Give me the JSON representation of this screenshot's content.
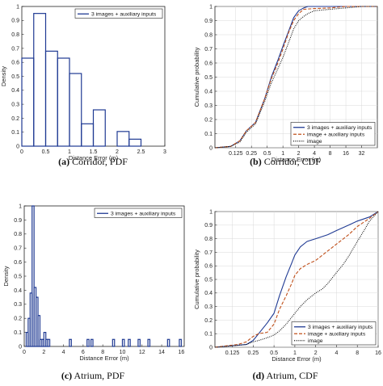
{
  "chart_data": [
    {
      "id": "a",
      "type": "bar",
      "caption_label": "(a)",
      "caption_text": "Corridor, PDF",
      "xlabel": "Distance Error (m)",
      "ylabel": "Density",
      "xlim": [
        0,
        3
      ],
      "ylim": [
        0,
        1
      ],
      "xticks": [
        0,
        0.5,
        1,
        1.5,
        2,
        2.5,
        3
      ],
      "xtick_labels": [
        "0",
        "0.5",
        "1",
        "1.5",
        "2",
        "2.5",
        "3"
      ],
      "yticks": [
        0,
        0.1,
        0.2,
        0.3,
        0.4,
        0.5,
        0.6,
        0.7,
        0.8,
        0.9,
        1
      ],
      "ytick_labels": [
        "0",
        "0.1",
        "0.2",
        "0.3",
        "0.4",
        "0.5",
        "0.6",
        "0.7",
        "0.8",
        "0.9",
        "1"
      ],
      "legend_position": "top-right",
      "color": "#1f3a93",
      "series": [
        {
          "name": "3 images + auxiliary inputs",
          "bin_edges": [
            0,
            0.25,
            0.5,
            0.75,
            1,
            1.25,
            1.5,
            1.75,
            2,
            2.25,
            2.5
          ],
          "values": [
            0.63,
            0.95,
            0.68,
            0.63,
            0.52,
            0.16,
            0.26,
            0.0,
            0.105,
            0.05
          ]
        }
      ]
    },
    {
      "id": "b",
      "type": "line",
      "caption_label": "(b)",
      "caption_text": "Corridor, CDF",
      "xlabel": "Distance Error (m)",
      "ylabel": "Cumulative probability",
      "xscale": "log2",
      "xlim": [
        0.05,
        64
      ],
      "ylim": [
        0,
        1
      ],
      "xticks": [
        0.125,
        0.25,
        0.5,
        1,
        2,
        4,
        8,
        16,
        32
      ],
      "xtick_labels": [
        "0.125",
        "0.25",
        "0.5",
        "1",
        "2",
        "4",
        "8",
        "16",
        "32"
      ],
      "yticks": [
        0,
        0.1,
        0.2,
        0.3,
        0.4,
        0.5,
        0.6,
        0.7,
        0.8,
        0.9,
        1
      ],
      "ytick_labels": [
        "0",
        "0.1",
        "0.2",
        "0.3",
        "0.4",
        "0.5",
        "0.6",
        "0.7",
        "0.8",
        "0.9",
        "1"
      ],
      "legend_position": "bottom-right",
      "series": [
        {
          "name": "3 images + auxiliary inputs",
          "color": "#1f3a93",
          "dash": "solid",
          "x": [
            0.05,
            0.1,
            0.15,
            0.2,
            0.3,
            0.45,
            0.6,
            0.8,
            1.0,
            1.3,
            1.6,
            2.0,
            2.5,
            3.0,
            64
          ],
          "y": [
            0.0,
            0.01,
            0.05,
            0.12,
            0.18,
            0.35,
            0.5,
            0.62,
            0.72,
            0.83,
            0.92,
            0.97,
            0.99,
            1.0,
            1.0
          ]
        },
        {
          "name": "image + auxiliary inputs",
          "color": "#c0501b",
          "dash": "dashed",
          "x": [
            0.05,
            0.1,
            0.15,
            0.2,
            0.3,
            0.45,
            0.6,
            0.8,
            1.0,
            1.3,
            1.6,
            2.0,
            2.5,
            4.0,
            8.0,
            16.0,
            64
          ],
          "y": [
            0.0,
            0.01,
            0.05,
            0.12,
            0.18,
            0.35,
            0.49,
            0.6,
            0.7,
            0.82,
            0.9,
            0.95,
            0.98,
            0.985,
            0.99,
            1.0,
            1.0
          ]
        },
        {
          "name": "image",
          "color": "#111111",
          "dash": "dotted",
          "x": [
            0.05,
            0.1,
            0.15,
            0.2,
            0.3,
            0.45,
            0.6,
            0.8,
            1.0,
            1.3,
            1.6,
            2.0,
            2.5,
            3.0,
            4.0,
            8.0,
            16.0,
            32.0,
            64
          ],
          "y": [
            0.0,
            0.01,
            0.04,
            0.11,
            0.17,
            0.33,
            0.46,
            0.56,
            0.64,
            0.75,
            0.84,
            0.9,
            0.93,
            0.95,
            0.97,
            0.98,
            0.99,
            1.0,
            1.0
          ]
        }
      ]
    },
    {
      "id": "c",
      "type": "bar",
      "caption_label": "(c)",
      "caption_text": "Atrium, PDF",
      "xlabel": "Distance Error (m)",
      "ylabel": "Density",
      "xlim": [
        0,
        16.3
      ],
      "ylim": [
        0,
        1
      ],
      "xticks": [
        0,
        2,
        4,
        6,
        8,
        10,
        12,
        14,
        16
      ],
      "xtick_labels": [
        "0",
        "2",
        "4",
        "6",
        "8",
        "10",
        "12",
        "14",
        "16"
      ],
      "yticks": [
        0,
        0.1,
        0.2,
        0.3,
        0.4,
        0.5,
        0.6,
        0.7,
        0.8,
        0.9,
        1
      ],
      "ytick_labels": [
        "0",
        "0.1",
        "0.2",
        "0.3",
        "0.4",
        "0.5",
        "0.6",
        "0.7",
        "0.8",
        "0.9",
        "1"
      ],
      "legend_position": "top-right",
      "color": "#1f3a93",
      "series": [
        {
          "name": "3 images + auxiliary inputs",
          "bin_edges": [
            0.2,
            0.4,
            0.6,
            0.8,
            1.0,
            1.2,
            1.4,
            1.6,
            1.8,
            2.0,
            2.2,
            2.4,
            2.6
          ],
          "values": [
            0.1,
            0.2,
            0.38,
            1.03,
            0.42,
            0.35,
            0.22,
            0.05,
            0.05,
            0.1,
            0.05,
            0.05
          ],
          "sparse_bins": [
            {
              "x0": 4.6,
              "x1": 4.8,
              "value": 0.05
            },
            {
              "x0": 6.4,
              "x1": 6.6,
              "value": 0.05
            },
            {
              "x0": 6.8,
              "x1": 7.0,
              "value": 0.05
            },
            {
              "x0": 9.0,
              "x1": 9.2,
              "value": 0.05
            },
            {
              "x0": 10.0,
              "x1": 10.2,
              "value": 0.05
            },
            {
              "x0": 10.6,
              "x1": 10.8,
              "value": 0.05
            },
            {
              "x0": 11.6,
              "x1": 11.8,
              "value": 0.05
            },
            {
              "x0": 12.6,
              "x1": 12.8,
              "value": 0.05
            },
            {
              "x0": 14.6,
              "x1": 14.8,
              "value": 0.05
            },
            {
              "x0": 15.8,
              "x1": 16.0,
              "value": 0.05
            }
          ]
        }
      ]
    },
    {
      "id": "d",
      "type": "line",
      "caption_label": "(d)",
      "caption_text": "Atrium, CDF",
      "xlabel": "Distance Error (m)",
      "ylabel": "Cumulative probability",
      "xscale": "log2",
      "xlim": [
        0.07,
        16
      ],
      "ylim": [
        0,
        1
      ],
      "xticks": [
        0.125,
        0.25,
        0.5,
        1,
        2,
        4,
        8,
        16
      ],
      "xtick_labels": [
        "0.125",
        "0.25",
        "0.5",
        "1",
        "2",
        "4",
        "8",
        "16"
      ],
      "yticks": [
        0,
        0.1,
        0.2,
        0.3,
        0.4,
        0.5,
        0.6,
        0.7,
        0.8,
        0.9,
        1
      ],
      "ytick_labels": [
        "0",
        "0.1",
        "0.2",
        "0.3",
        "0.4",
        "0.5",
        "0.6",
        "0.7",
        "0.8",
        "0.9",
        "1"
      ],
      "legend_position": "bottom-right",
      "series": [
        {
          "name": "3 images + auxiliary inputs",
          "color": "#1f3a93",
          "dash": "solid",
          "x": [
            0.07,
            0.2,
            0.25,
            0.3,
            0.4,
            0.5,
            0.6,
            0.75,
            0.9,
            1.0,
            1.2,
            1.5,
            2.0,
            3.0,
            4.0,
            6.0,
            8.0,
            12.0,
            16.0
          ],
          "y": [
            0.0,
            0.02,
            0.05,
            0.1,
            0.18,
            0.25,
            0.38,
            0.52,
            0.62,
            0.68,
            0.74,
            0.78,
            0.8,
            0.83,
            0.86,
            0.9,
            0.93,
            0.96,
            1.0
          ]
        },
        {
          "name": "image + auxiliary inputs",
          "color": "#c0501b",
          "dash": "dashed",
          "x": [
            0.07,
            0.15,
            0.2,
            0.25,
            0.3,
            0.4,
            0.5,
            0.6,
            0.75,
            0.9,
            1.0,
            1.2,
            1.5,
            2.0,
            3.0,
            4.0,
            6.0,
            8.0,
            12.0,
            16.0
          ],
          "y": [
            0.0,
            0.02,
            0.04,
            0.08,
            0.1,
            0.11,
            0.17,
            0.28,
            0.38,
            0.47,
            0.53,
            0.58,
            0.61,
            0.64,
            0.71,
            0.76,
            0.83,
            0.89,
            0.95,
            1.0
          ]
        },
        {
          "name": "image",
          "color": "#111111",
          "dash": "dotted",
          "x": [
            0.07,
            0.2,
            0.25,
            0.3,
            0.4,
            0.5,
            0.6,
            0.75,
            1.0,
            1.2,
            1.5,
            2.0,
            2.5,
            3.0,
            4.0,
            5.0,
            6.0,
            8.0,
            10.0,
            12.0,
            16.0
          ],
          "y": [
            0.0,
            0.02,
            0.04,
            0.05,
            0.07,
            0.09,
            0.12,
            0.17,
            0.25,
            0.3,
            0.35,
            0.4,
            0.43,
            0.47,
            0.55,
            0.61,
            0.67,
            0.78,
            0.86,
            0.93,
            1.0
          ]
        }
      ]
    }
  ]
}
